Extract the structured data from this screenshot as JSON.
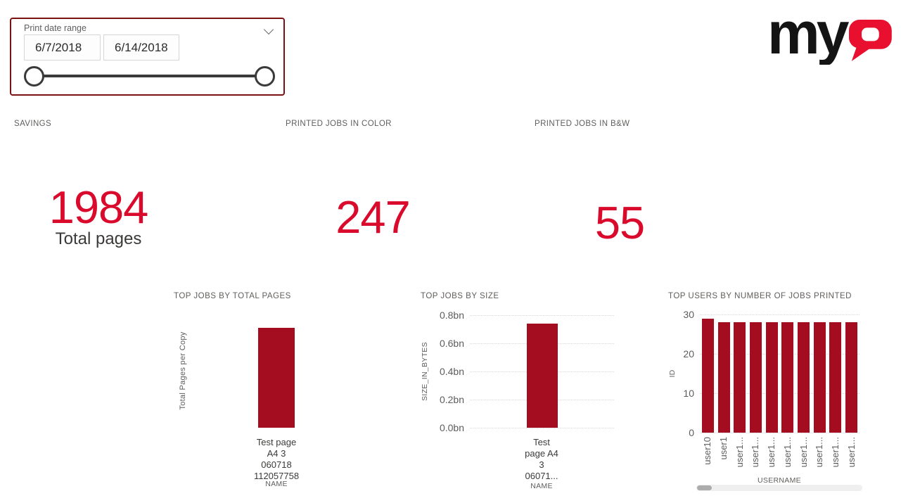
{
  "date_slicer": {
    "title": "Print date range",
    "start_date": "6/7/2018",
    "end_date": "6/14/2018"
  },
  "logo": {
    "black_part": "my",
    "red_part": "Q"
  },
  "kpis": [
    {
      "title": "SAVINGS",
      "value": "1984",
      "subtitle": "Total pages"
    },
    {
      "title": "PRINTED JOBS IN COLOR",
      "value": "247"
    },
    {
      "title": "PRINTED JOBS IN B&W",
      "value": "55"
    }
  ],
  "chart_data": [
    {
      "type": "bar",
      "title": "TOP JOBS BY TOTAL PAGES",
      "ylabel": "Total Pages per Copy",
      "xlabel": "NAME",
      "categories": [
        "Test page A4 3 060718 112057758"
      ],
      "category_display_lines": [
        [
          "Test page",
          "A4 3",
          "060718",
          "112057758"
        ]
      ],
      "values": [
        0.89
      ],
      "ylim": [
        0,
        1
      ],
      "yticks": [],
      "grid": false,
      "note_axis": "no value axis labels shown; bar height relative to plot"
    },
    {
      "type": "bar",
      "title": "TOP JOBS BY SIZE",
      "ylabel": "SIZE_IN_BYTES",
      "xlabel": "NAME",
      "categories": [
        "Test page A4 3 06071..."
      ],
      "category_display_lines": [
        [
          "Test",
          "page A4",
          "3",
          "06071..."
        ]
      ],
      "values": [
        0.74
      ],
      "ylim": [
        0,
        0.8
      ],
      "yticks": [
        {
          "label": "0.8bn",
          "value": 0.8
        },
        {
          "label": "0.6bn",
          "value": 0.6
        },
        {
          "label": "0.4bn",
          "value": 0.4
        },
        {
          "label": "0.2bn",
          "value": 0.2
        },
        {
          "label": "0.0bn",
          "value": 0.0
        }
      ],
      "grid": true
    },
    {
      "type": "bar",
      "title": "TOP USERS BY NUMBER OF JOBS PRINTED",
      "ylabel": "ID",
      "xlabel": "USERNAME",
      "categories": [
        "user10",
        "user1",
        "user1...",
        "user1...",
        "user1...",
        "user1...",
        "user1...",
        "user1...",
        "user1...",
        "user1..."
      ],
      "values": [
        29,
        28,
        28,
        28,
        28,
        28,
        28,
        28,
        28,
        28
      ],
      "ylim": [
        0,
        30
      ],
      "yticks": [
        {
          "label": "30",
          "value": 30
        },
        {
          "label": "20",
          "value": 20
        },
        {
          "label": "10",
          "value": 10
        },
        {
          "label": "0",
          "value": 0
        }
      ],
      "grid": true,
      "rotated_x_labels": true,
      "has_horizontal_scrollbar": true
    }
  ],
  "colors": {
    "brand_red": "#E8102E",
    "kpi_red": "#DA0A2C",
    "bar_red": "#A30D1F",
    "slicer_border": "#7A1113",
    "gray_text": "#605E5C",
    "dark_text": "#3B3A39"
  }
}
